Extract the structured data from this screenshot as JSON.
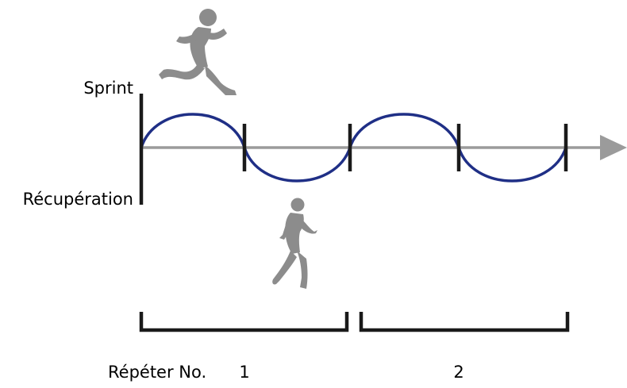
{
  "labels": {
    "top": "Sprint",
    "bottom": "Récupération",
    "repeat": "Répéter No."
  },
  "repeats": [
    "1",
    "2"
  ],
  "colors": {
    "wave": "#1f2f86",
    "axis": "#9b9b9b",
    "figure": "#8c8c8c",
    "ink": "#1a1a1a"
  },
  "icons": {
    "sprint": "sprinting-runner-icon",
    "recovery": "jogging-runner-icon"
  }
}
